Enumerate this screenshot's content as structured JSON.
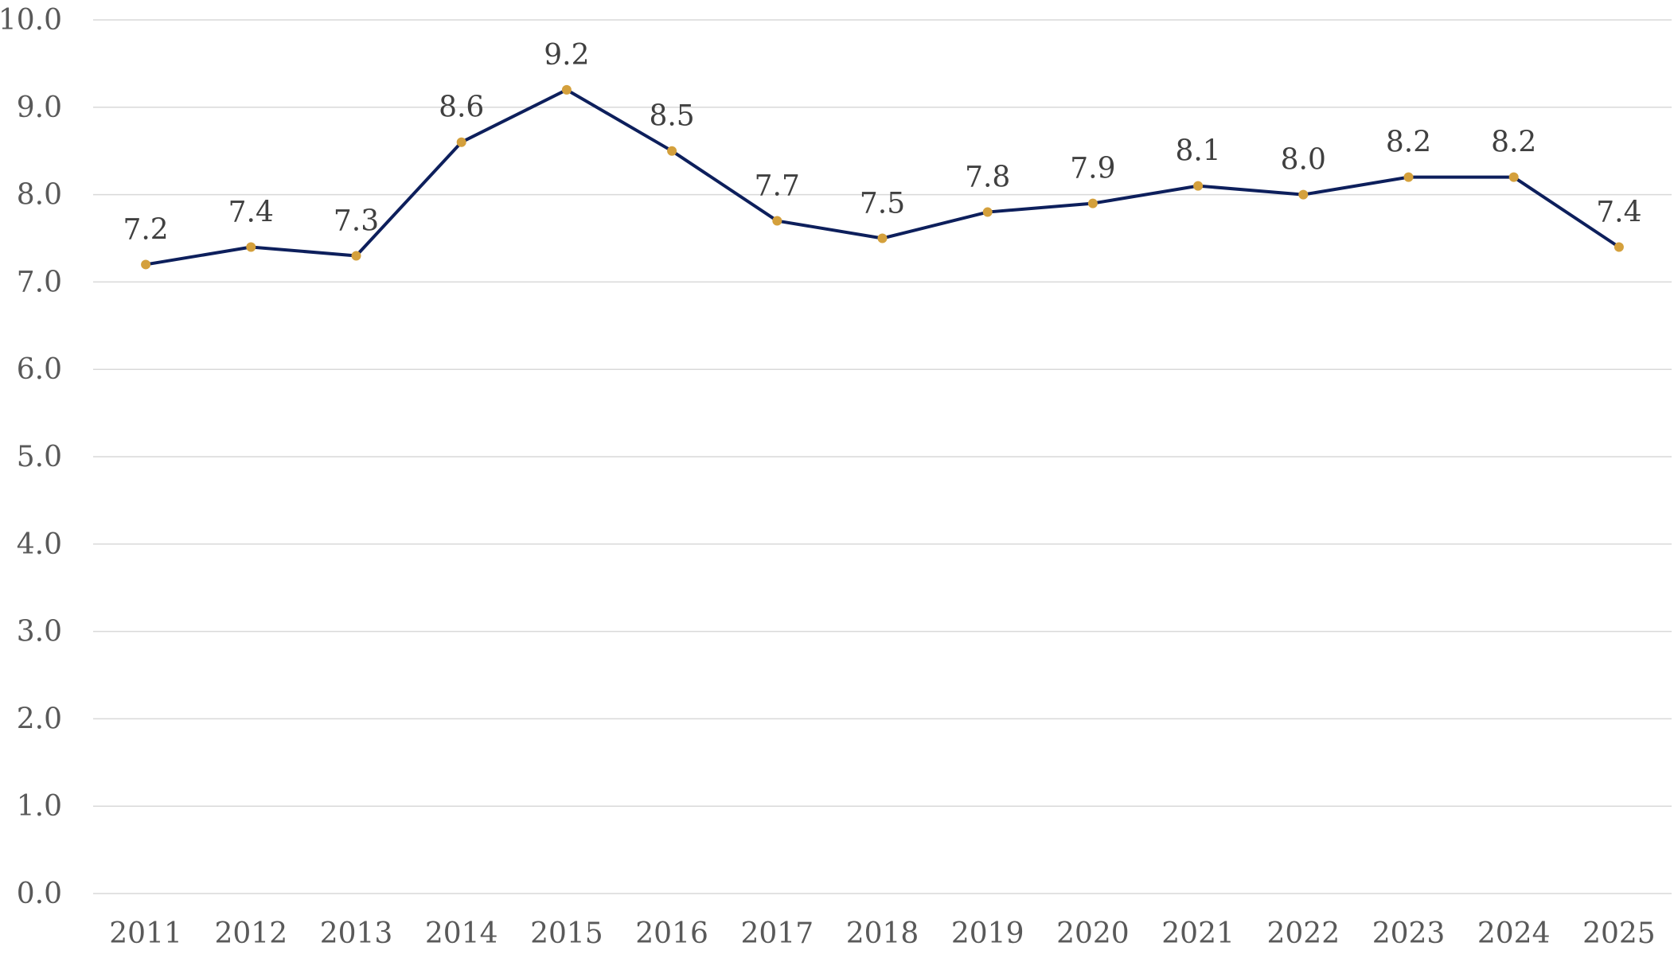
{
  "chart_data": {
    "type": "line",
    "title": "",
    "xlabel": "",
    "ylabel": "",
    "categories": [
      "2011",
      "2012",
      "2013",
      "2014",
      "2015",
      "2016",
      "2017",
      "2018",
      "2019",
      "2020",
      "2021",
      "2022",
      "2023",
      "2024",
      "2025"
    ],
    "series": [
      {
        "values": [
          7.2,
          7.4,
          7.3,
          8.6,
          9.2,
          8.5,
          7.7,
          7.5,
          7.8,
          7.9,
          8.1,
          8.0,
          8.2,
          8.2,
          7.4
        ],
        "data_labels": [
          "7.2",
          "7.4",
          "7.3",
          "8.6",
          "9.2",
          "8.5",
          "7.7",
          "7.5",
          "7.8",
          "7.9",
          "8.1",
          "8.0",
          "8.2",
          "8.2",
          "7.4"
        ],
        "line_color": "#0d1f5c",
        "marker_color": "#d4a03c"
      }
    ],
    "ylim": [
      0,
      10
    ],
    "y_ticks": [
      "0.0",
      "1.0",
      "2.0",
      "3.0",
      "4.0",
      "5.0",
      "6.0",
      "7.0",
      "8.0",
      "9.0",
      "10.0"
    ],
    "grid": true,
    "legend": "none"
  }
}
